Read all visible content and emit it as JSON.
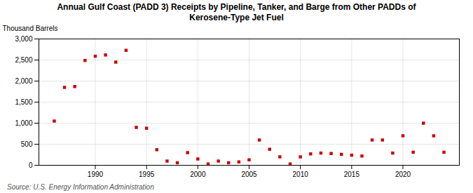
{
  "chart_data": {
    "type": "scatter",
    "title": "Annual Gulf Coast (PADD 3) Receipts by Pipeline, Tanker, and Barge from Other PADDs of\nKerosene-Type Jet Fuel",
    "ylabel": "Thousand Barrels",
    "source": "Source: U.S. Energy Information Administration",
    "x": [
      1986,
      1987,
      1988,
      1989,
      1990,
      1991,
      1992,
      1993,
      1994,
      1995,
      1996,
      1997,
      1998,
      1999,
      2000,
      2001,
      2002,
      2003,
      2004,
      2005,
      2006,
      2007,
      2008,
      2009,
      2010,
      2011,
      2012,
      2013,
      2014,
      2015,
      2016,
      2017,
      2018,
      2019,
      2020,
      2021,
      2022,
      2023,
      2024
    ],
    "values": [
      1050,
      1850,
      1870,
      2490,
      2590,
      2620,
      2450,
      2730,
      900,
      880,
      370,
      100,
      60,
      300,
      150,
      30,
      100,
      60,
      80,
      130,
      600,
      380,
      200,
      30,
      200,
      270,
      290,
      280,
      260,
      240,
      220,
      600,
      600,
      290,
      700,
      310,
      1000,
      700,
      310
    ],
    "color": "#cc0000",
    "marker": "square",
    "xlim": [
      1984.5,
      2025.5
    ],
    "ylim": [
      0,
      3000
    ],
    "xticks": [
      1990,
      1995,
      2000,
      2005,
      2010,
      2015,
      2020
    ],
    "yticks": [
      0,
      500,
      {
        "value": 1000,
        "label": "1,000"
      },
      {
        "value": 1500,
        "label": "1,500"
      },
      {
        "value": 2000,
        "label": "2,000"
      },
      {
        "value": 2500,
        "label": "2,500"
      },
      {
        "value": 3000,
        "label": "3,000"
      }
    ],
    "grid": true
  }
}
